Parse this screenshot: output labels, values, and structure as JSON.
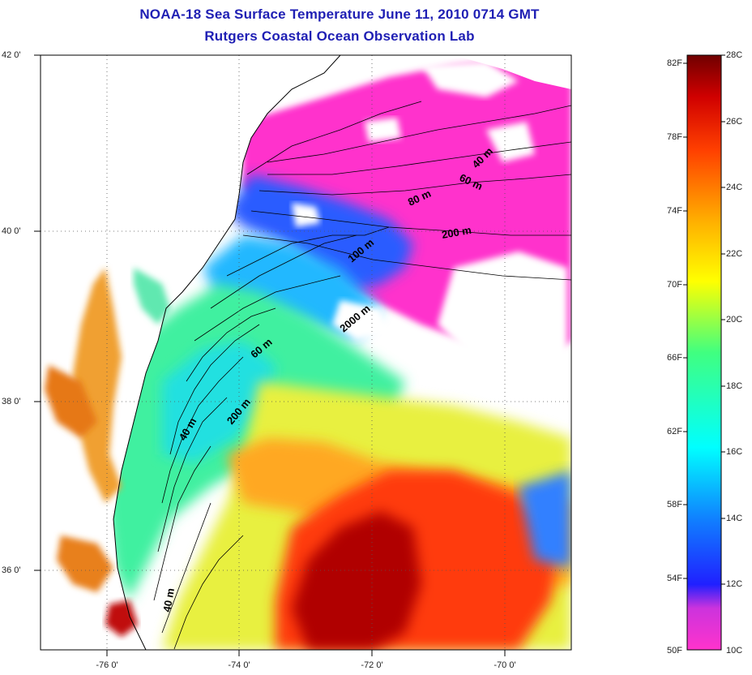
{
  "title": {
    "line1": "NOAA-18 Sea Surface Temperature June 11, 2010 0714 GMT",
    "line2": "Rutgers Coastal Ocean Observation Lab"
  },
  "axes": {
    "lat_labels": [
      "42 0'",
      "40 0'",
      "38 0'",
      "36 0'"
    ],
    "lon_labels": [
      "-76 0'",
      "-74 0'",
      "-72 0'",
      "-70 0'"
    ]
  },
  "contours": {
    "labels": [
      "40 m",
      "60 m",
      "80 m",
      "200 m",
      "100 m",
      "2000 m",
      "60 m",
      "200 m",
      "40 m",
      "40 m"
    ]
  },
  "colorbar": {
    "fahrenheit": [
      "82F",
      "78F",
      "74F",
      "70F",
      "66F",
      "62F",
      "58F",
      "54F",
      "50F"
    ],
    "celsius": [
      "28C",
      "26C",
      "24C",
      "22C",
      "20C",
      "18C",
      "16C",
      "14C",
      "12C",
      "10C"
    ],
    "colors": [
      "#ff33cc",
      "#8040d0",
      "#2020ff",
      "#1080ff",
      "#00ffff",
      "#40ff80",
      "#ffff00",
      "#ffb000",
      "#ff4000",
      "#d00000",
      "#700000"
    ]
  }
}
